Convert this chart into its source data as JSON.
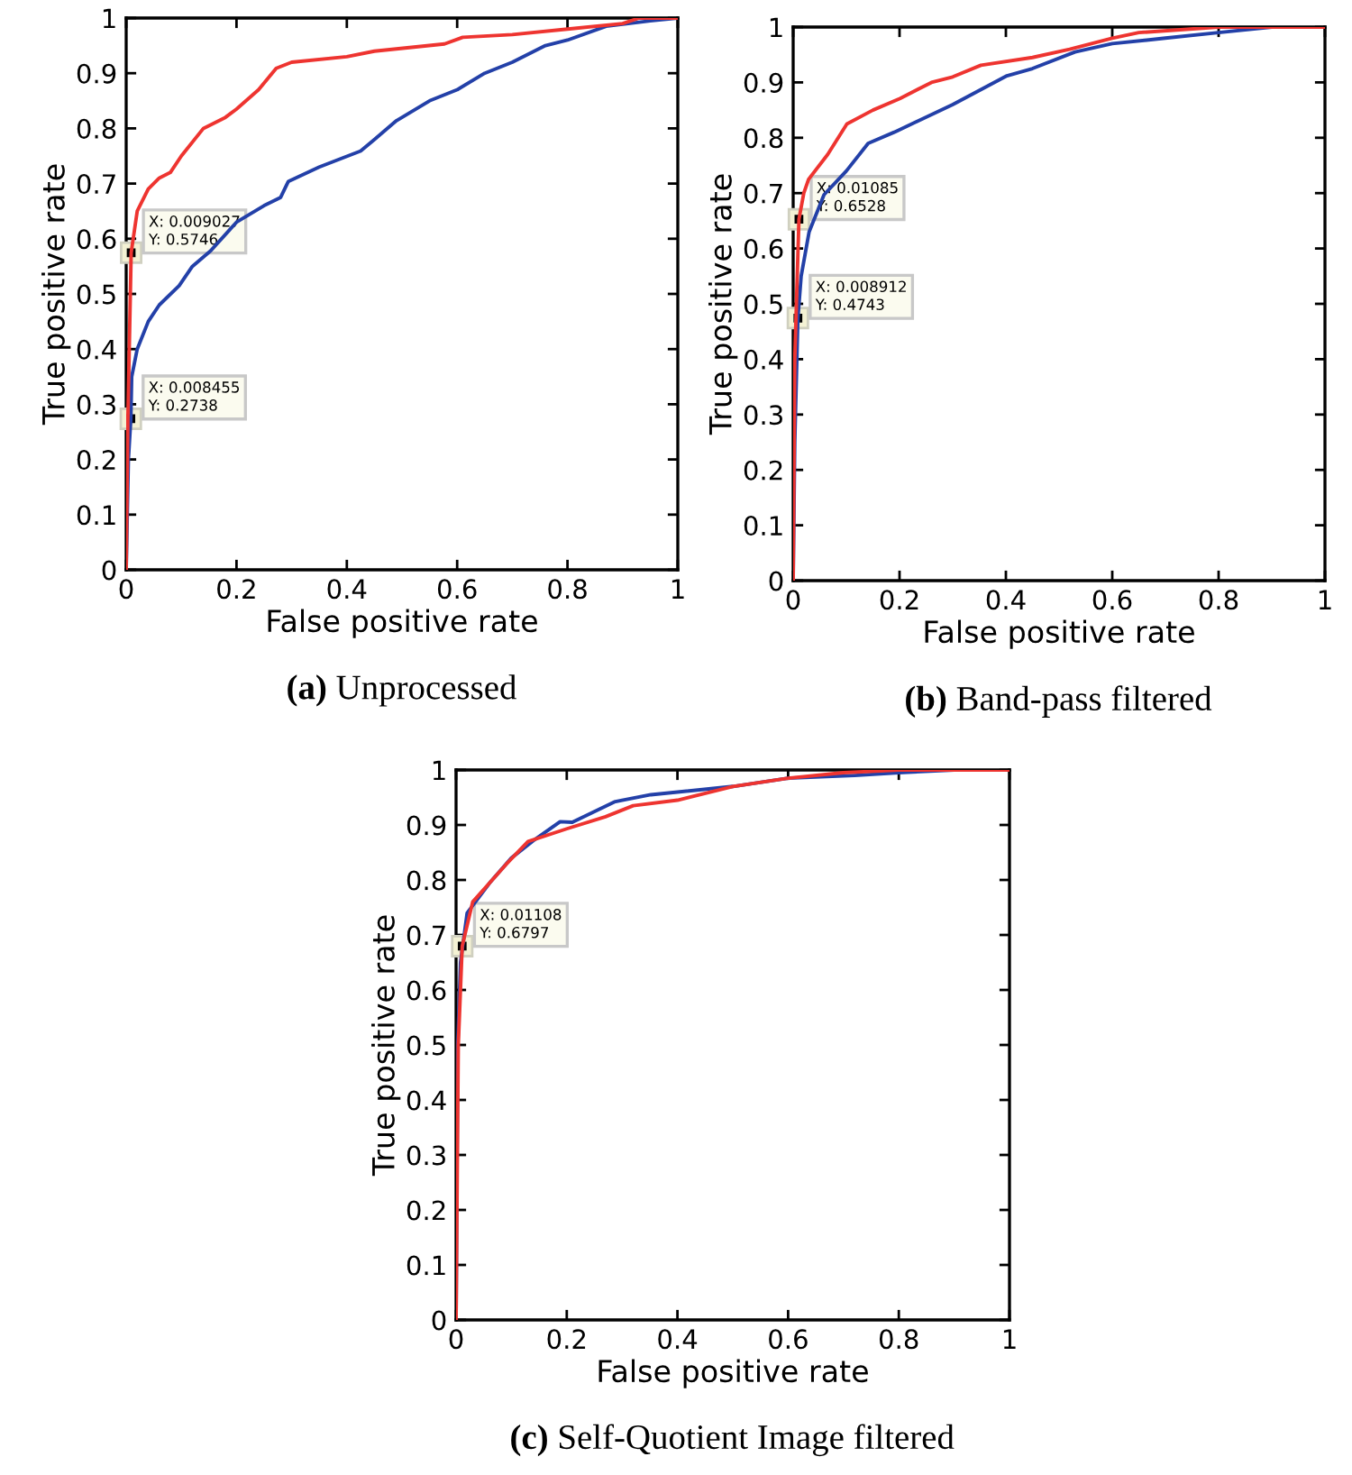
{
  "chart_data": [
    {
      "type": "line",
      "xlabel": "False positive rate",
      "ylabel": "True positive rate",
      "xlim": [
        0,
        1
      ],
      "ylim": [
        0,
        1
      ],
      "xticks": [
        0,
        0.2,
        0.4,
        0.6,
        0.8,
        1
      ],
      "yticks": [
        0,
        0.1,
        0.2,
        0.3,
        0.4,
        0.5,
        0.6,
        0.7,
        0.8,
        0.9,
        1
      ],
      "grid": false,
      "legend": false,
      "series": [
        {
          "color": "#2340a8",
          "x": [
            0,
            0.004,
            0.008455,
            0.01,
            0.02,
            0.04,
            0.06,
            0.096,
            0.12,
            0.153,
            0.2,
            0.25,
            0.28,
            0.294,
            0.35,
            0.425,
            0.45,
            0.49,
            0.55,
            0.6,
            0.65,
            0.7,
            0.76,
            0.8,
            0.87,
            0.95,
            1
          ],
          "values": [
            0,
            0.2,
            0.2738,
            0.35,
            0.4,
            0.45,
            0.48,
            0.515,
            0.55,
            0.578,
            0.63,
            0.66,
            0.675,
            0.704,
            0.73,
            0.759,
            0.78,
            0.814,
            0.85,
            0.87,
            0.9,
            0.92,
            0.95,
            0.96,
            0.985,
            0.995,
            1
          ]
        },
        {
          "color": "#ee3430",
          "x": [
            0,
            0.003,
            0.009027,
            0.02,
            0.04,
            0.06,
            0.08,
            0.1,
            0.14,
            0.18,
            0.2,
            0.24,
            0.272,
            0.3,
            0.4,
            0.45,
            0.577,
            0.61,
            0.7,
            0.8,
            0.9,
            0.93,
            1
          ],
          "values": [
            0,
            0.27,
            0.5746,
            0.65,
            0.69,
            0.71,
            0.72,
            0.75,
            0.8,
            0.82,
            0.835,
            0.87,
            0.909,
            0.92,
            0.93,
            0.94,
            0.953,
            0.965,
            0.97,
            0.98,
            0.99,
            1,
            1
          ]
        }
      ],
      "annotations": [
        {
          "text": "X: 0.009027\nY: 0.5746",
          "x": 0.009027,
          "y": 0.5746
        },
        {
          "text": "X: 0.008455\nY: 0.2738",
          "x": 0.008455,
          "y": 0.2738
        },
        "(a) Unprocessed"
      ]
    },
    {
      "type": "line",
      "xlabel": "False positive rate",
      "ylabel": "True positive rate",
      "xlim": [
        0,
        1
      ],
      "ylim": [
        0,
        1
      ],
      "xticks": [
        0,
        0.2,
        0.4,
        0.6,
        0.8,
        1
      ],
      "yticks": [
        0,
        0.1,
        0.2,
        0.3,
        0.4,
        0.5,
        0.6,
        0.7,
        0.8,
        0.9,
        1
      ],
      "grid": false,
      "legend": false,
      "series": [
        {
          "color": "#2340a8",
          "x": [
            0,
            0.003,
            0.008912,
            0.015,
            0.03,
            0.058,
            0.1,
            0.141,
            0.19,
            0.3,
            0.402,
            0.45,
            0.53,
            0.6,
            0.7,
            0.8,
            0.9,
            1
          ],
          "values": [
            0,
            0.25,
            0.4743,
            0.55,
            0.63,
            0.697,
            0.74,
            0.79,
            0.81,
            0.86,
            0.912,
            0.925,
            0.955,
            0.97,
            0.98,
            0.99,
            1,
            1
          ]
        },
        {
          "color": "#ee3430",
          "x": [
            0,
            0.003,
            0.01085,
            0.02,
            0.029,
            0.065,
            0.101,
            0.15,
            0.201,
            0.26,
            0.3,
            0.353,
            0.45,
            0.52,
            0.6,
            0.65,
            0.8,
            1
          ],
          "values": [
            0,
            0.4,
            0.6528,
            0.7,
            0.725,
            0.77,
            0.825,
            0.85,
            0.871,
            0.9,
            0.91,
            0.931,
            0.945,
            0.96,
            0.98,
            0.99,
            1,
            1
          ]
        }
      ],
      "annotations": [
        {
          "text": "X: 0.01085\nY: 0.6528",
          "x": 0.01085,
          "y": 0.6528
        },
        {
          "text": "X: 0.008912\nY: 0.4743",
          "x": 0.008912,
          "y": 0.4743
        },
        "(b) Band-pass filtered"
      ]
    },
    {
      "type": "line",
      "xlabel": "False positive rate",
      "ylabel": "True positive rate",
      "xlim": [
        0,
        1
      ],
      "ylim": [
        0,
        1
      ],
      "xticks": [
        0,
        0.2,
        0.4,
        0.6,
        0.8,
        1
      ],
      "yticks": [
        0,
        0.1,
        0.2,
        0.3,
        0.4,
        0.5,
        0.6,
        0.7,
        0.8,
        0.9,
        1
      ],
      "grid": false,
      "legend": false,
      "series": [
        {
          "color": "#2340a8",
          "x": [
            0,
            0.003,
            0.008,
            0.02,
            0.061,
            0.1,
            0.139,
            0.188,
            0.21,
            0.286,
            0.3,
            0.352,
            0.5,
            0.6,
            0.72,
            0.8,
            0.9,
            1
          ],
          "values": [
            0,
            0.5,
            0.65,
            0.74,
            0.795,
            0.84,
            0.871,
            0.906,
            0.905,
            0.942,
            0.945,
            0.955,
            0.97,
            0.985,
            0.99,
            0.995,
            1,
            1
          ]
        },
        {
          "color": "#ee3430",
          "x": [
            0,
            0.004,
            0.01108,
            0.03,
            0.09,
            0.13,
            0.2,
            0.27,
            0.32,
            0.4,
            0.5,
            0.6,
            0.7,
            0.8,
            1
          ],
          "values": [
            0,
            0.5,
            0.6797,
            0.76,
            0.828,
            0.87,
            0.893,
            0.915,
            0.935,
            0.945,
            0.97,
            0.985,
            0.995,
            1,
            1
          ]
        }
      ],
      "annotations": [
        {
          "text": "X: 0.01108\nY: 0.6797",
          "x": 0.01108,
          "y": 0.6797
        },
        "(c) Self-Quotient Image filtered"
      ]
    }
  ]
}
